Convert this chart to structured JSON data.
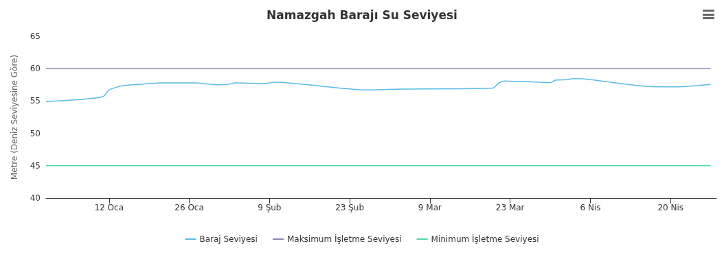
{
  "chart_data": {
    "type": "line",
    "title": "Namazgah Barajı Su Seviyesi",
    "ylabel": "Metre (Deniz Seviyesine Göre)",
    "series": [
      {
        "name": "Baraj Seviyesi",
        "color": "#5bbbe6",
        "x": [
          "--01-01",
          "--01-08",
          "--01-11",
          "--01-12",
          "--01-14",
          "--01-17",
          "--01-21",
          "--01-27",
          "--01-31",
          "--02-02",
          "--02-03",
          "--02-08",
          "--02-10",
          "--02-26",
          "--03-04",
          "--03-20",
          "--03-21",
          "--03-22",
          "--03-30",
          "--03-31",
          "--04-02",
          "--04-03",
          "--04-05",
          "--04-16",
          "--04-21",
          "--04-27"
        ],
        "values": [
          54.9,
          55.3,
          55.7,
          56.7,
          57.3,
          57.55,
          57.8,
          57.8,
          57.5,
          57.6,
          57.8,
          57.7,
          57.9,
          56.7,
          56.85,
          57.0,
          57.8,
          58.1,
          57.85,
          58.25,
          58.3,
          58.45,
          58.4,
          57.25,
          57.2,
          57.55
        ]
      },
      {
        "name": "Maksimum İşletme Seviyesi",
        "color": "#8a85b5",
        "x": [
          "--01-01",
          "--04-27"
        ],
        "values": [
          60,
          60
        ]
      },
      {
        "name": "Minimum İşletme Seviyesi",
        "color": "#4fdba3",
        "x": [
          "--01-01",
          "--04-27"
        ],
        "values": [
          45,
          45
        ]
      }
    ],
    "xlim": [
      "--01-01",
      "--04-28"
    ],
    "xticks": [
      {
        "value": "--01-12",
        "label": "12 Oca"
      },
      {
        "value": "--01-26",
        "label": "26 Oca"
      },
      {
        "value": "--02-09",
        "label": "9 Şub"
      },
      {
        "value": "--02-23",
        "label": "23 Şub"
      },
      {
        "value": "--03-09",
        "label": "9 Mar"
      },
      {
        "value": "--03-23",
        "label": "23 Mar"
      },
      {
        "value": "--04-06",
        "label": "6 Nis"
      },
      {
        "value": "--04-20",
        "label": "20 Nis"
      }
    ],
    "ylim": [
      40,
      65
    ],
    "yticks": [
      40,
      45,
      50,
      55,
      60,
      65
    ],
    "grid": false,
    "legend": "bottom",
    "marker": "none",
    "line_style": "solid"
  }
}
